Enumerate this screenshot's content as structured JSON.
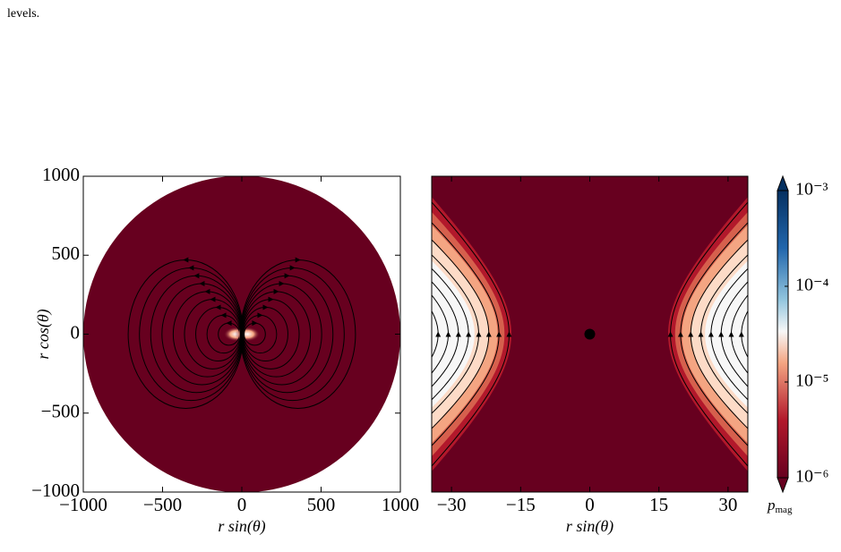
{
  "text": "levels.",
  "chart_data": [
    {
      "type": "streamplot",
      "xlim": [
        -1000,
        1000
      ],
      "ylim": [
        -1000,
        1000
      ],
      "xticks": [
        {
          "value": -1000,
          "label": "−1000"
        },
        {
          "value": -500,
          "label": "−500"
        },
        0,
        500,
        1000
      ],
      "yticks": [
        {
          "value": -1000,
          "label": "−1000"
        },
        {
          "value": -500,
          "label": "−500"
        },
        0,
        500,
        1000
      ],
      "xlabel": "r sin(θ)",
      "ylabel": "r cos(θ)"
    },
    {
      "type": "streamplot",
      "xlim": [
        -34.3,
        34.3
      ],
      "ylim": [
        -34.3,
        34.3
      ],
      "xticks": [
        {
          "value": -30,
          "label": "−30"
        },
        {
          "value": -15,
          "label": "−15"
        },
        0,
        15,
        30
      ],
      "xlabel": "r sin(θ)",
      "colorbar": {
        "scale": "log",
        "cmap": "RdBu_r",
        "extend": "both",
        "lim": [
          1e-06,
          0.001
        ],
        "ticks": [
          {
            "value": 0.001,
            "label": "10⁻³"
          },
          {
            "value": 0.0001,
            "label": "10⁻⁴"
          },
          {
            "value": 1e-05,
            "label": "10⁻⁵"
          },
          {
            "value": 1e-06,
            "label": "10⁻⁶"
          }
        ],
        "label": {
          "symbol": "p",
          "subscript": "mag"
        }
      }
    }
  ]
}
